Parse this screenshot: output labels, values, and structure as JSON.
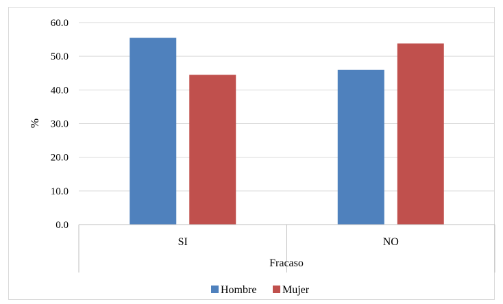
{
  "chart_data": {
    "type": "bar",
    "title": "",
    "xlabel": "Fracaso",
    "ylabel": "%",
    "categories": [
      "SI",
      "NO"
    ],
    "series": [
      {
        "name": "Hombre",
        "values": [
          55.5,
          46.0
        ],
        "color": "#4f81bd"
      },
      {
        "name": "Mujer",
        "values": [
          44.5,
          53.8
        ],
        "color": "#c0504d"
      }
    ],
    "ylim": [
      0,
      60
    ],
    "yticks": [
      "0.0",
      "10.0",
      "20.0",
      "30.0",
      "40.0",
      "50.0",
      "60.0"
    ],
    "grid": true,
    "legend": "bottom"
  }
}
